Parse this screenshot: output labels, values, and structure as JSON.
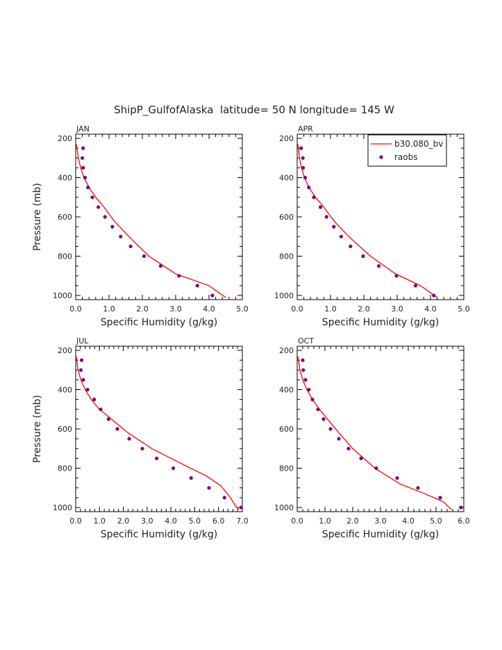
{
  "figure_title": "ShipP_GulfofAlaska  latitude= 50 N longitude= 145 W",
  "legend": {
    "model_label": "b30.080_bv",
    "obs_label": "raobs"
  },
  "colors": {
    "model": "#ff0000",
    "obs": "#800080",
    "axis": "#000000"
  },
  "chart_data": [
    {
      "type": "line",
      "panel": "JAN",
      "title": "JAN",
      "xlabel": "Specific Humidity (g/kg)",
      "ylabel": "Pressure (mb)",
      "xlim": [
        0,
        5
      ],
      "xticks": [
        "0.0",
        "1.0",
        "2.0",
        "3.0",
        "4.0",
        "5.0"
      ],
      "ylim": [
        200,
        1000
      ],
      "yticks": [
        "200",
        "400",
        "600",
        "800",
        "1000"
      ],
      "y_inverted": true,
      "series": [
        {
          "name": "b30.080_bv",
          "style": "line",
          "x": [
            0.02,
            0.08,
            0.15,
            0.25,
            0.4,
            0.6,
            0.85,
            1.15,
            1.6,
            2.2,
            3.0,
            4.0,
            4.5
          ],
          "y": [
            230,
            300,
            350,
            400,
            450,
            500,
            550,
            620,
            700,
            800,
            890,
            950,
            1010
          ]
        },
        {
          "name": "raobs",
          "style": "markers",
          "x": [
            0.22,
            0.2,
            0.22,
            0.28,
            0.37,
            0.5,
            0.68,
            0.88,
            1.1,
            1.35,
            1.65,
            2.05,
            2.55,
            3.1,
            3.65,
            4.1
          ],
          "y": [
            250,
            300,
            350,
            400,
            450,
            500,
            550,
            600,
            650,
            700,
            750,
            800,
            850,
            900,
            950,
            1000
          ]
        }
      ]
    },
    {
      "type": "line",
      "panel": "APR",
      "title": "APR",
      "xlabel": "Specific Humidity (g/kg)",
      "ylabel": "Pressure (mb)",
      "xlim": [
        0,
        5
      ],
      "xticks": [
        "0.0",
        "1.0",
        "2.0",
        "3.0",
        "4.0",
        "5.0"
      ],
      "ylim": [
        200,
        1000
      ],
      "yticks": [
        "200",
        "400",
        "600",
        "800",
        "1000"
      ],
      "y_inverted": true,
      "series": [
        {
          "name": "b30.080_bv",
          "style": "line",
          "x": [
            0.02,
            0.07,
            0.13,
            0.22,
            0.35,
            0.55,
            0.8,
            1.1,
            1.55,
            2.2,
            2.95,
            3.7,
            4.2
          ],
          "y": [
            230,
            300,
            350,
            400,
            450,
            500,
            550,
            620,
            700,
            800,
            890,
            950,
            1010
          ]
        },
        {
          "name": "raobs",
          "style": "markers",
          "x": [
            0.12,
            0.17,
            0.18,
            0.24,
            0.35,
            0.5,
            0.7,
            0.88,
            1.1,
            1.32,
            1.6,
            1.98,
            2.45,
            2.98,
            3.55,
            4.1
          ],
          "y": [
            250,
            300,
            350,
            400,
            450,
            500,
            550,
            600,
            650,
            700,
            750,
            800,
            850,
            900,
            950,
            1000
          ]
        }
      ]
    },
    {
      "type": "line",
      "panel": "JUL",
      "title": "JUL",
      "xlabel": "Specific Humidity (g/kg)",
      "ylabel": "Pressure (mb)",
      "xlim": [
        0,
        7
      ],
      "xticks": [
        "0.0",
        "1.0",
        "2.0",
        "3.0",
        "4.0",
        "5.0",
        "6.0",
        "7.0"
      ],
      "ylim": [
        200,
        1000
      ],
      "yticks": [
        "200",
        "400",
        "600",
        "800",
        "1000"
      ],
      "y_inverted": true,
      "series": [
        {
          "name": "b30.080_bv",
          "style": "line",
          "x": [
            0.02,
            0.1,
            0.22,
            0.4,
            0.65,
            1.0,
            1.5,
            2.2,
            3.2,
            4.5,
            5.5,
            6.1,
            6.5,
            6.7,
            6.85
          ],
          "y": [
            230,
            300,
            350,
            400,
            450,
            500,
            550,
            620,
            700,
            780,
            840,
            890,
            950,
            990,
            1010
          ]
        },
        {
          "name": "raobs",
          "style": "markers",
          "x": [
            0.25,
            0.22,
            0.32,
            0.5,
            0.78,
            1.05,
            1.38,
            1.75,
            2.25,
            2.8,
            3.4,
            4.1,
            4.85,
            5.6,
            6.25,
            6.95
          ],
          "y": [
            250,
            300,
            350,
            400,
            450,
            500,
            550,
            600,
            650,
            700,
            750,
            800,
            850,
            900,
            950,
            1000
          ]
        }
      ]
    },
    {
      "type": "line",
      "panel": "OCT",
      "title": "OCT",
      "xlabel": "Specific Humidity (g/kg)",
      "ylabel": "Pressure (mb)",
      "xlim": [
        0,
        6
      ],
      "xticks": [
        "0.0",
        "1.0",
        "2.0",
        "3.0",
        "4.0",
        "5.0",
        "6.0"
      ],
      "ylim": [
        200,
        1000
      ],
      "yticks": [
        "200",
        "400",
        "600",
        "800",
        "1000"
      ],
      "y_inverted": true,
      "series": [
        {
          "name": "b30.080_bv",
          "style": "line",
          "x": [
            0.02,
            0.1,
            0.2,
            0.35,
            0.55,
            0.8,
            1.15,
            1.5,
            2.0,
            2.8,
            3.7,
            4.6,
            5.25,
            5.55
          ],
          "y": [
            230,
            300,
            350,
            400,
            450,
            500,
            560,
            620,
            700,
            800,
            880,
            930,
            970,
            1010
          ]
        },
        {
          "name": "raobs",
          "style": "markers",
          "x": [
            0.2,
            0.22,
            0.3,
            0.42,
            0.55,
            0.75,
            0.95,
            1.2,
            1.5,
            1.85,
            2.3,
            2.85,
            3.6,
            4.35,
            5.15,
            5.9
          ],
          "y": [
            250,
            300,
            350,
            400,
            450,
            500,
            550,
            600,
            650,
            700,
            750,
            800,
            850,
            900,
            950,
            1000
          ]
        }
      ]
    }
  ]
}
